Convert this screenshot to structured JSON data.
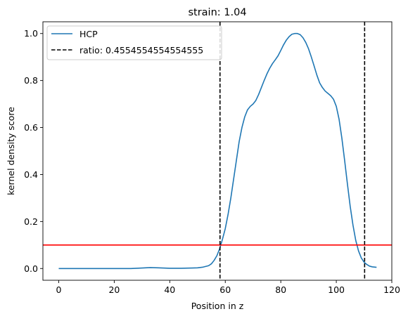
{
  "chart_data": {
    "type": "line",
    "title": "strain: 1.04",
    "xlabel": "Position in z",
    "ylabel": "kernel density score",
    "xlim": [
      -5.7,
      120
    ],
    "ylim": [
      -0.05,
      1.05
    ],
    "xticks": [
      0,
      20,
      40,
      60,
      80,
      100,
      120
    ],
    "yticks": [
      0.0,
      0.2,
      0.4,
      0.6,
      0.8,
      1.0
    ],
    "grid": false,
    "legend_position": "top-left",
    "series": [
      {
        "name": "HCP",
        "color": "#1f77b4",
        "x": [
          0,
          10,
          20,
          26,
          30,
          33,
          36,
          40,
          44,
          48,
          50,
          52,
          54,
          55,
          56,
          57,
          58,
          59,
          60,
          61,
          62,
          63,
          64,
          65,
          66,
          67,
          68,
          69,
          70,
          71,
          72,
          73,
          74,
          75,
          76,
          77,
          78,
          79,
          80,
          81,
          82,
          83,
          84,
          85,
          86,
          87,
          88,
          89,
          90,
          91,
          92,
          93,
          94,
          95,
          96,
          97,
          98,
          99,
          100,
          101,
          102,
          103,
          104,
          105,
          106,
          107,
          108,
          109,
          110,
          111,
          112,
          113,
          114.5
        ],
        "y": [
          0.0,
          0.0,
          0.0,
          0.0,
          0.002,
          0.004,
          0.003,
          0.001,
          0.001,
          0.002,
          0.003,
          0.006,
          0.012,
          0.02,
          0.035,
          0.055,
          0.085,
          0.125,
          0.17,
          0.23,
          0.3,
          0.38,
          0.46,
          0.54,
          0.6,
          0.645,
          0.675,
          0.69,
          0.7,
          0.715,
          0.74,
          0.77,
          0.8,
          0.828,
          0.852,
          0.872,
          0.888,
          0.905,
          0.928,
          0.952,
          0.972,
          0.987,
          0.997,
          1.0,
          1.0,
          0.995,
          0.982,
          0.962,
          0.935,
          0.9,
          0.862,
          0.823,
          0.79,
          0.77,
          0.755,
          0.745,
          0.735,
          0.72,
          0.69,
          0.635,
          0.555,
          0.46,
          0.36,
          0.265,
          0.185,
          0.12,
          0.075,
          0.045,
          0.027,
          0.017,
          0.01,
          0.007,
          0.005
        ]
      }
    ],
    "vlines": [
      {
        "name": "ratio: 0.4554554554554555",
        "x": 58.1,
        "color": "#000000",
        "style": "dashed"
      },
      {
        "name": "",
        "x": 110.2,
        "color": "#000000",
        "style": "dashed"
      }
    ],
    "hline": {
      "y": 0.1,
      "color": "#ff0000"
    },
    "legend_entries": [
      {
        "label": "HCP",
        "style": "solid",
        "color": "#1f77b4"
      },
      {
        "label": "ratio: 0.4554554554554555",
        "style": "dashed",
        "color": "#000000"
      }
    ]
  }
}
